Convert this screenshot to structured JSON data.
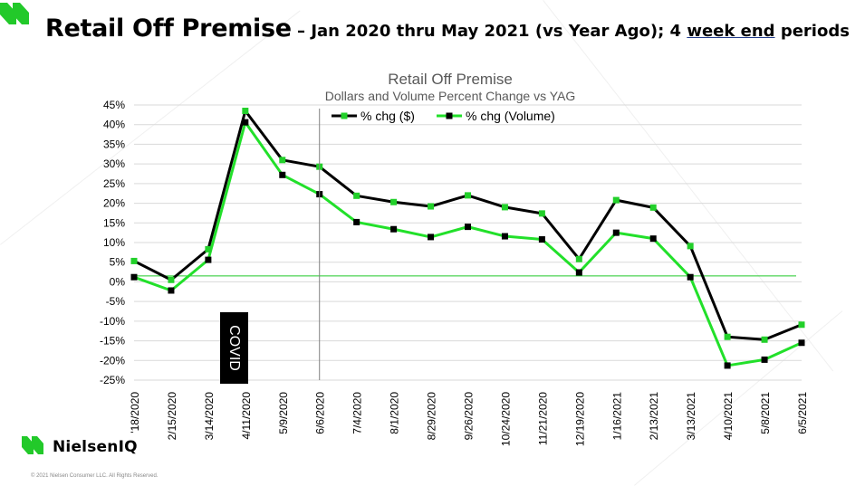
{
  "slide": {
    "title": "Retail Off Premise",
    "subtitle_part1": " – Jan 2020 thru May 2021 (vs Year Ago); 4 ",
    "subtitle_underlined": "week end",
    "subtitle_part2": " periods",
    "brand": "NielsenIQ",
    "copyright": "© 2021 Nielsen Consumer LLC. All Rights Reserved.",
    "brand_color": "#22c92a"
  },
  "chart_data": {
    "type": "line",
    "title": "Retail Off Premise",
    "subtitle": "Dollars and Volume Percent Change vs YAG",
    "categories": [
      "1/18/2020",
      "2/15/2020",
      "3/14/2020",
      "4/11/2020",
      "5/9/2020",
      "6/6/2020",
      "7/4/2020",
      "8/1/2020",
      "8/29/2020",
      "9/26/2020",
      "10/24/2020",
      "11/21/2020",
      "12/19/2020",
      "1/16/2021",
      "2/13/2021",
      "3/13/2021",
      "4/10/2021",
      "5/8/2021",
      "6/5/2021"
    ],
    "category_labels": [
      "'18/2020",
      "2/15/2020",
      "3/14/2020",
      "4/11/2020",
      "5/9/2020",
      "6/6/2020",
      "7/4/2020",
      "8/1/2020",
      "8/29/2020",
      "9/26/2020",
      "10/24/2020",
      "11/21/2020",
      "12/19/2020",
      "1/16/2021",
      "2/13/2021",
      "3/13/2021",
      "4/10/2021",
      "5/8/2021",
      "6/5/2021"
    ],
    "series": [
      {
        "name": "% chg ($)",
        "line_color": "#000000",
        "marker_color": "#22d02a",
        "values": [
          5.3,
          0.5,
          8.3,
          43.5,
          31.0,
          29.3,
          21.9,
          20.3,
          19.2,
          22.0,
          19.0,
          17.4,
          5.8,
          20.8,
          18.9,
          9.1,
          -14.0,
          -14.7,
          -10.9
        ]
      },
      {
        "name": "% chg (Volume)",
        "line_color": "#22e02a",
        "marker_color": "#000000",
        "values": [
          1.2,
          -2.2,
          5.6,
          40.6,
          27.2,
          22.3,
          15.2,
          13.4,
          11.4,
          14.0,
          11.6,
          10.8,
          2.4,
          12.5,
          11.0,
          1.2,
          -21.3,
          -19.8,
          -15.5
        ]
      }
    ],
    "y_ticks": [
      "45%",
      "40%",
      "35%",
      "30%",
      "25%",
      "20%",
      "15%",
      "10%",
      "5%",
      "0%",
      "-5%",
      "-10%",
      "-15%",
      "-20%",
      "-25%"
    ],
    "ylim": [
      -25,
      45
    ],
    "y_tick_step": 5,
    "grid": true,
    "legend_position": "top",
    "reference_line": {
      "value": 1.5,
      "color": "#22c92a"
    },
    "event_marker": {
      "label": "COVID",
      "category_index": 5
    }
  }
}
